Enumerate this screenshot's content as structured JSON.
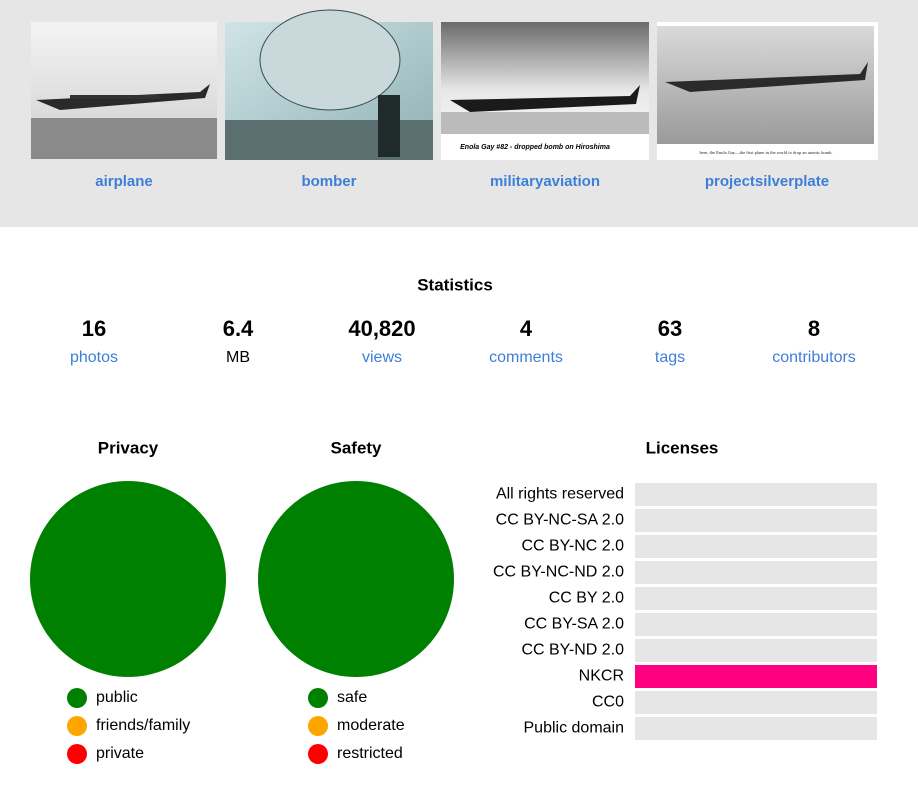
{
  "photos": [
    {
      "tag": "airplane"
    },
    {
      "tag": "bomber"
    },
    {
      "tag": "militaryaviation",
      "caption": "Enola Gay #82 - dropped bomb on Hiroshima"
    },
    {
      "tag": "projectsilverplate",
      "caption": "here, the Enola Gay—the first plane in the world to drop an atomic bomb."
    }
  ],
  "statistics": {
    "title": "Statistics",
    "items": [
      {
        "number": "16",
        "label": "photos"
      },
      {
        "number": "6.4",
        "label": "MB"
      },
      {
        "number": "40,820",
        "label": "views"
      },
      {
        "number": "4",
        "label": "comments"
      },
      {
        "number": "63",
        "label": "tags"
      },
      {
        "number": "8",
        "label": "contributors"
      }
    ]
  },
  "chart_data": [
    {
      "type": "pie",
      "title": "Privacy",
      "categories": [
        "public",
        "friends/family",
        "private"
      ],
      "values": [
        100,
        0,
        0
      ],
      "colors": [
        "#008000",
        "#ffa500",
        "#ff0000"
      ]
    },
    {
      "type": "pie",
      "title": "Safety",
      "categories": [
        "safe",
        "moderate",
        "restricted"
      ],
      "values": [
        100,
        0,
        0
      ],
      "colors": [
        "#008000",
        "#ffa500",
        "#ff0000"
      ]
    },
    {
      "type": "bar",
      "orientation": "horizontal",
      "title": "Licenses",
      "categories": [
        "All rights reserved",
        "CC BY-NC-SA 2.0",
        "CC BY-NC 2.0",
        "CC BY-NC-ND 2.0",
        "CC BY 2.0",
        "CC BY-SA 2.0",
        "CC BY-ND 2.0",
        "NKCR",
        "CC0",
        "Public domain"
      ],
      "values": [
        0,
        0,
        0,
        0,
        0,
        0,
        0,
        100,
        0,
        0
      ],
      "xlim": [
        0,
        100
      ],
      "color": "#ff0080",
      "track_color": "#e6e6e6"
    }
  ]
}
